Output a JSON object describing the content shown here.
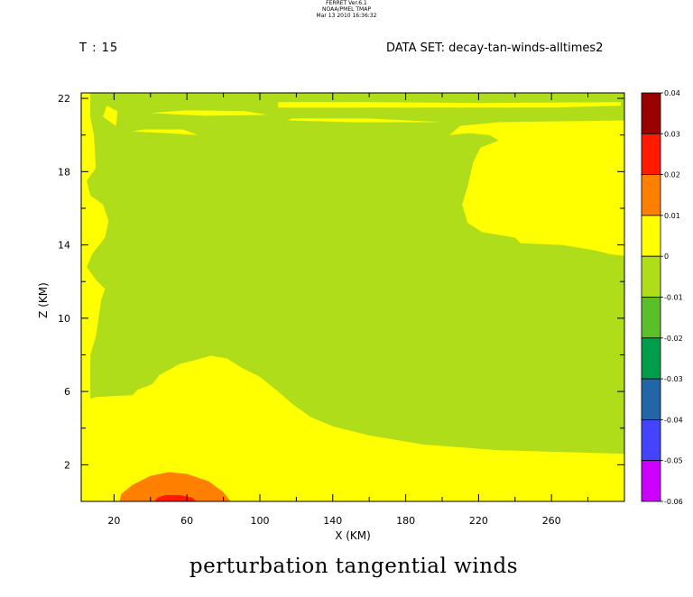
{
  "header": {
    "ferret_lines": [
      "FERRET  Ver.6.1",
      "NOAA/PMEL TMAP",
      "Mar 13 2010 16:36:32"
    ],
    "time_label": "T : 15",
    "dataset_label": "DATA SET: decay-tan-winds-alltimes2"
  },
  "chart_data": {
    "type": "contour",
    "title": "perturbation tangential winds",
    "xlabel": "X (KM)",
    "ylabel": "Z (KM)",
    "xlim": [
      2,
      300
    ],
    "ylim": [
      0,
      22.3
    ],
    "x_ticks": [
      20,
      60,
      100,
      140,
      180,
      220,
      260
    ],
    "y_ticks": [
      2,
      6,
      10,
      14,
      18,
      22
    ],
    "colorbar": {
      "levels": [
        0.04,
        0.03,
        0.02,
        0.01,
        0,
        -0.01,
        -0.02,
        -0.03,
        -0.04,
        -0.05,
        -0.06
      ],
      "level_labels": [
        "0.04",
        "0.03",
        "0.02",
        "0.01",
        "0",
        "-0.01",
        "-0.02",
        "-0.03",
        "-0.04",
        "-0.05",
        "-0.06"
      ],
      "colors": [
        "#990000",
        "#ff1a00",
        "#ff8000",
        "#ffff00",
        "#b0dd1a",
        "#5cbf2a",
        "#009d4a",
        "#2266a8",
        "#4444ff",
        "#cc00ff"
      ]
    },
    "regions": [
      {
        "name": "background 0 to 0.01",
        "color": "#ffff00",
        "points": [
          [
            2,
            0
          ],
          [
            300,
            0
          ],
          [
            300,
            22.3
          ],
          [
            2,
            22.3
          ]
        ]
      },
      {
        "name": "main -0.01 to 0 region",
        "color": "#b0dd1a",
        "points": [
          [
            7,
            22.3
          ],
          [
            7,
            21
          ],
          [
            9,
            20
          ],
          [
            10,
            18.2
          ],
          [
            5,
            17.5
          ],
          [
            7,
            16.7
          ],
          [
            14,
            16.2
          ],
          [
            17,
            15.3
          ],
          [
            15,
            14.4
          ],
          [
            8,
            13.5
          ],
          [
            5,
            12.8
          ],
          [
            10,
            12.1
          ],
          [
            15,
            11.6
          ],
          [
            13,
            11
          ],
          [
            10,
            9
          ],
          [
            7,
            8
          ],
          [
            7,
            5.6
          ],
          [
            10,
            5.7
          ],
          [
            30,
            5.8
          ],
          [
            33,
            6.1
          ],
          [
            41,
            6.4
          ],
          [
            45,
            6.9
          ],
          [
            56,
            7.5
          ],
          [
            64,
            7.7
          ],
          [
            73,
            7.95
          ],
          [
            82,
            7.8
          ],
          [
            90,
            7.3
          ],
          [
            100,
            6.8
          ],
          [
            110,
            6.0
          ],
          [
            118,
            5.3
          ],
          [
            128,
            4.6
          ],
          [
            140,
            4.1
          ],
          [
            160,
            3.6
          ],
          [
            190,
            3.1
          ],
          [
            230,
            2.8
          ],
          [
            300,
            2.6
          ],
          [
            300,
            13.4
          ],
          [
            292,
            13.5
          ],
          [
            284,
            13.7
          ],
          [
            266,
            14.0
          ],
          [
            243,
            14.1
          ],
          [
            240,
            14.4
          ],
          [
            222,
            14.7
          ],
          [
            214,
            15.2
          ],
          [
            211,
            16.2
          ],
          [
            214,
            17.2
          ],
          [
            217,
            18.5
          ],
          [
            221,
            19.3
          ],
          [
            231,
            19.7
          ],
          [
            226,
            20.0
          ],
          [
            215,
            20.1
          ],
          [
            204,
            20.0
          ],
          [
            210,
            20.5
          ],
          [
            231,
            20.7
          ],
          [
            300,
            20.8
          ],
          [
            300,
            22.3
          ]
        ]
      },
      {
        "name": "orange 0.01 to 0.02",
        "color": "#ff8000",
        "points": [
          [
            23,
            0
          ],
          [
            24,
            0.4
          ],
          [
            30,
            0.9
          ],
          [
            40,
            1.4
          ],
          [
            50,
            1.6
          ],
          [
            60,
            1.5
          ],
          [
            72,
            1.1
          ],
          [
            80,
            0.5
          ],
          [
            84,
            0
          ]
        ]
      },
      {
        "name": "red 0.02 to 0.03",
        "color": "#ff1a00",
        "points": [
          [
            42,
            0
          ],
          [
            44,
            0.2
          ],
          [
            48,
            0.35
          ],
          [
            56,
            0.35
          ],
          [
            63,
            0.2
          ],
          [
            65,
            0
          ]
        ]
      }
    ],
    "strips": [
      {
        "color": "#ffff00",
        "points": [
          [
            40,
            21.2
          ],
          [
            70,
            21.05
          ],
          [
            104,
            21.1
          ],
          [
            92,
            21.3
          ],
          [
            60,
            21.35
          ]
        ]
      },
      {
        "color": "#ffff00",
        "points": [
          [
            110,
            21.5
          ],
          [
            140,
            21.5
          ],
          [
            180,
            21.5
          ],
          [
            220,
            21.5
          ],
          [
            260,
            21.5
          ],
          [
            298,
            21.6
          ],
          [
            298,
            21.8
          ],
          [
            220,
            21.75
          ],
          [
            160,
            21.8
          ],
          [
            110,
            21.8
          ]
        ]
      },
      {
        "color": "#ffff00",
        "points": [
          [
            115,
            20.8
          ],
          [
            150,
            20.7
          ],
          [
            200,
            20.7
          ],
          [
            160,
            20.9
          ],
          [
            118,
            20.9
          ]
        ]
      },
      {
        "color": "#ffff00",
        "points": [
          [
            30,
            20.2
          ],
          [
            50,
            20.1
          ],
          [
            66,
            20.0
          ],
          [
            58,
            20.3
          ],
          [
            36,
            20.3
          ]
        ]
      },
      {
        "color": "#ffff00",
        "points": [
          [
            16,
            21.6
          ],
          [
            22,
            21.3
          ],
          [
            21,
            20.5
          ],
          [
            14,
            21.0
          ]
        ]
      }
    ]
  }
}
